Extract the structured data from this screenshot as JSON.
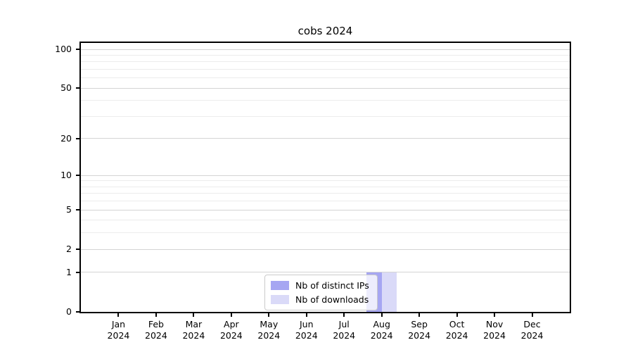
{
  "chart_data": {
    "type": "bar",
    "title": "cobs 2024",
    "categories": [
      "Jan 2024",
      "Feb 2024",
      "Mar 2024",
      "Apr 2024",
      "May 2024",
      "Jun 2024",
      "Jul 2024",
      "Aug 2024",
      "Sep 2024",
      "Oct 2024",
      "Nov 2024",
      "Dec 2024"
    ],
    "series": [
      {
        "name": "Nb of distinct IPs",
        "color": "#a6a6f2",
        "values": [
          0,
          0,
          0,
          0,
          0,
          0,
          0,
          1,
          0,
          0,
          0,
          0
        ]
      },
      {
        "name": "Nb of downloads",
        "color": "#dadaf8",
        "values": [
          0,
          0,
          0,
          0,
          0,
          0,
          0,
          1,
          0,
          0,
          0,
          0
        ]
      }
    ],
    "y_scale": "log1p",
    "y_ticks": [
      0,
      1,
      2,
      5,
      10,
      20,
      50,
      100
    ],
    "y_minor_gridlines": [
      3,
      4,
      6,
      7,
      8,
      9,
      30,
      40,
      60,
      70,
      80,
      90
    ],
    "ylim": [
      0,
      112
    ],
    "xlabel": "",
    "ylabel": "",
    "grid": "horizontal",
    "legend_position": "lower center",
    "colors": {
      "major_grid": "#d4d4d4",
      "minor_grid": "#ececec",
      "spine": "#000000",
      "background": "#ffffff"
    }
  }
}
